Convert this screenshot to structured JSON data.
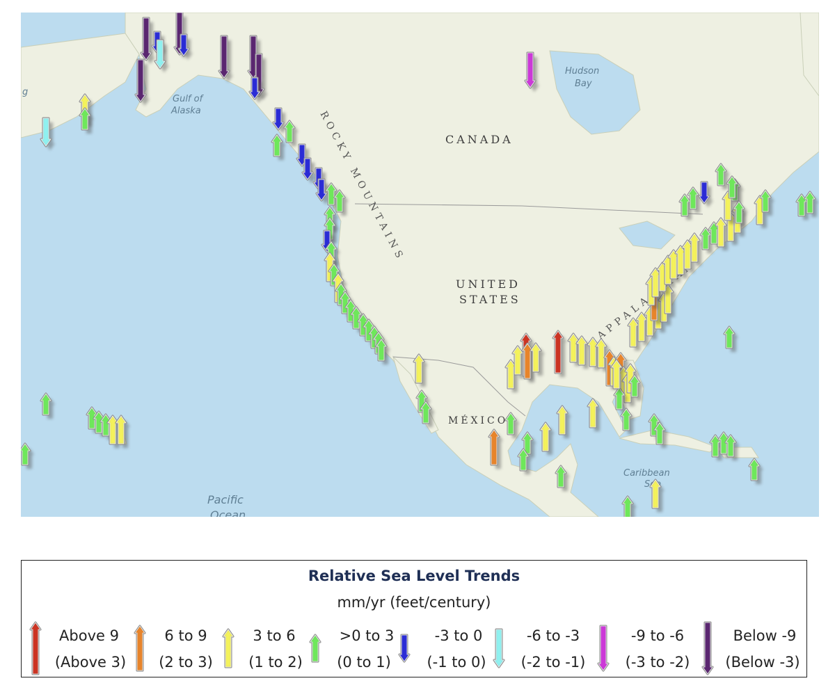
{
  "map": {
    "labels": {
      "canada": "CANADA",
      "united": "UNITED",
      "states": "STATES",
      "mexico": "MÉXICO",
      "rocky": "ROCKY MOUNTAINS",
      "appalachian": "APPALACHIAN",
      "gulf_line1": "Gulf of",
      "gulf_line2": "Alaska",
      "hudson_line1": "Hudson",
      "hudson_line2": "Bay",
      "pacific_line1": "Pacific",
      "pacific_line2": "Ocean",
      "caribbean_line1": "Caribbean",
      "caribbean_line2": "Sea",
      "edge_letter": "g"
    }
  },
  "legend": {
    "title": "Relative Sea Level Trends",
    "subtitle": "mm/yr (feet/century)",
    "items": [
      {
        "range": "Above 9",
        "feet": "(Above 3)",
        "color": "#cc3322",
        "dir": "up",
        "size": "large"
      },
      {
        "range": "6 to 9",
        "feet": "(2 to 3)",
        "color": "#e8842a",
        "dir": "up",
        "size": "medium"
      },
      {
        "range": "3 to 6",
        "feet": "(1 to 2)",
        "color": "#f4f25a",
        "dir": "up",
        "size": "small"
      },
      {
        "range": ">0 to 3",
        "feet": "(0 to 1)",
        "color": "#6ee85a",
        "dir": "up",
        "size": "tiny"
      },
      {
        "range": "-3 to 0",
        "feet": "(-1 to 0)",
        "color": "#2a2bd6",
        "dir": "down",
        "size": "tiny"
      },
      {
        "range": "-6 to -3",
        "feet": "(-2 to -1)",
        "color": "#8ff1f0",
        "dir": "down",
        "size": "small"
      },
      {
        "range": "-9 to -6",
        "feet": "(-3 to -2)",
        "color": "#cc38d8",
        "dir": "down",
        "size": "medium"
      },
      {
        "range": "Below -9",
        "feet": "(Below -3)",
        "color": "#5a2670",
        "dir": "down",
        "size": "large"
      }
    ]
  }
}
